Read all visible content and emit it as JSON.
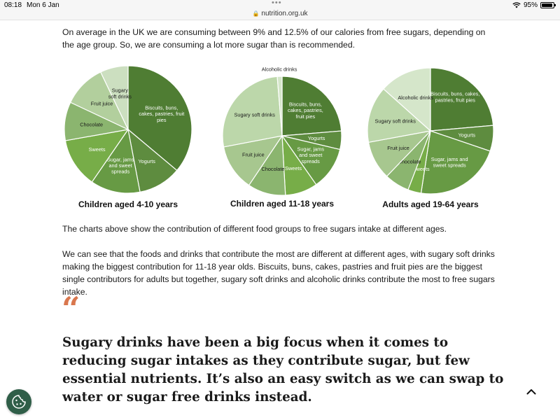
{
  "status_bar": {
    "time": "08:18",
    "date": "Mon 6 Jan",
    "url": "nutrition.org.uk",
    "battery": "95%",
    "battery_level": 0.95
  },
  "intro": "On average in the UK we are consuming between 9% and 12.5% of our calories from free sugars, depending on the age group. So, we are consuming a lot more sugar than is recommended.",
  "chart_data": [
    {
      "type": "pie",
      "title": "Children aged 4-10 years",
      "slices": [
        {
          "label": "Biscuits, buns, cakes, pastries, fruit pies",
          "value": 36.1,
          "color": "#4f7d33",
          "text_color": "#ffffff"
        },
        {
          "label": "Yogurts",
          "value": 10.9,
          "color": "#5e8c3f",
          "text_color": "#ffffff"
        },
        {
          "label": "Sugar, jams and sweet spreads",
          "value": 12.6,
          "color": "#679a44",
          "text_color": "#ffffff"
        },
        {
          "label": "Sweets",
          "value": 12.6,
          "color": "#77ad48",
          "text_color": "#ffffff"
        },
        {
          "label": "Chocolate",
          "value": 9.8,
          "color": "#8bb56f",
          "text_color": "#1a1a1a"
        },
        {
          "label": "Fruit juice",
          "value": 10.9,
          "color": "#b2cf9d",
          "text_color": "#1a1a1a"
        },
        {
          "label": "Sugary soft drinks",
          "value": 7.1,
          "color": "#ccdfc0",
          "text_color": "#1a1a1a"
        }
      ]
    },
    {
      "type": "pie",
      "title": "Children aged 11-18 years",
      "slices": [
        {
          "label": "Biscuits, buns, cakes, pastries, fruit pies",
          "value": 23.7,
          "color": "#4f7d33",
          "text_color": "#ffffff"
        },
        {
          "label": "Yogurts",
          "value": 5.0,
          "color": "#5e8c3f",
          "text_color": "#ffffff"
        },
        {
          "label": "Sugar, jams and sweet spreads",
          "value": 11.6,
          "color": "#679a44",
          "text_color": "#ffffff"
        },
        {
          "label": "Sweets",
          "value": 8.8,
          "color": "#77ad48",
          "text_color": "#ffffff"
        },
        {
          "label": "Chocolate",
          "value": 10.3,
          "color": "#8bb56f",
          "text_color": "#1a1a1a"
        },
        {
          "label": "Fruit juice",
          "value": 12.6,
          "color": "#a7c78f",
          "text_color": "#1a1a1a"
        },
        {
          "label": "Sugary soft drinks",
          "value": 26.7,
          "color": "#bcd7aa",
          "text_color": "#1a1a1a"
        },
        {
          "label": "Alcoholic drinks",
          "value": 1.3,
          "color": "#d5e6ca",
          "text_color": "#1a1a1a"
        }
      ]
    },
    {
      "type": "pie",
      "title": "Adults aged 19-64 years",
      "slices": [
        {
          "label": "Biscuits, buns, cakes, pastries, fruit pies",
          "value": 23.6,
          "color": "#4f7d33",
          "text_color": "#ffffff"
        },
        {
          "label": "Yogurts",
          "value": 6.6,
          "color": "#5e8c3f",
          "text_color": "#ffffff"
        },
        {
          "label": "Sugar, jams and sweet spreads",
          "value": 22.2,
          "color": "#679a44",
          "text_color": "#ffffff"
        },
        {
          "label": "Sweets",
          "value": 3.4,
          "color": "#77ad48",
          "text_color": "#ffffff"
        },
        {
          "label": "Chocolate",
          "value": 6.4,
          "color": "#8bb56f",
          "text_color": "#1a1a1a"
        },
        {
          "label": "Fruit juice",
          "value": 9.9,
          "color": "#a7c78f",
          "text_color": "#1a1a1a"
        },
        {
          "label": "Sugary soft drinks",
          "value": 14.5,
          "color": "#bcd7aa",
          "text_color": "#1a1a1a"
        },
        {
          "label": "Alcoholic drinks",
          "value": 13.4,
          "color": "#d5e6ca",
          "text_color": "#1a1a1a"
        }
      ]
    }
  ],
  "para2": "The charts above show the contribution of different food groups to free sugars intake at different ages.",
  "para3": "We can see that the foods and drinks that contribute the most are different at different ages, with sugary soft drinks making the biggest contribution for 11-18 year olds. Biscuits, buns, cakes, pastries and fruit pies are the biggest single contributors for adults but together, sugary soft drinks and alcoholic drinks contribute the most to free sugars intake.",
  "quote_mark": "“",
  "pull_quote": "Sugary drinks have been a big focus when it comes to reducing sugar intakes as they contribute sugar, but few essential nutrients. It’s also an easy switch as we can swap to water or sugar free drinks instead.",
  "icons": {
    "cookie": "cookie-icon",
    "scroll_top": "chevron-up-icon",
    "lock": "lock-icon",
    "wifi": "wifi-icon",
    "battery": "battery-icon",
    "more": "more-dots-icon"
  }
}
